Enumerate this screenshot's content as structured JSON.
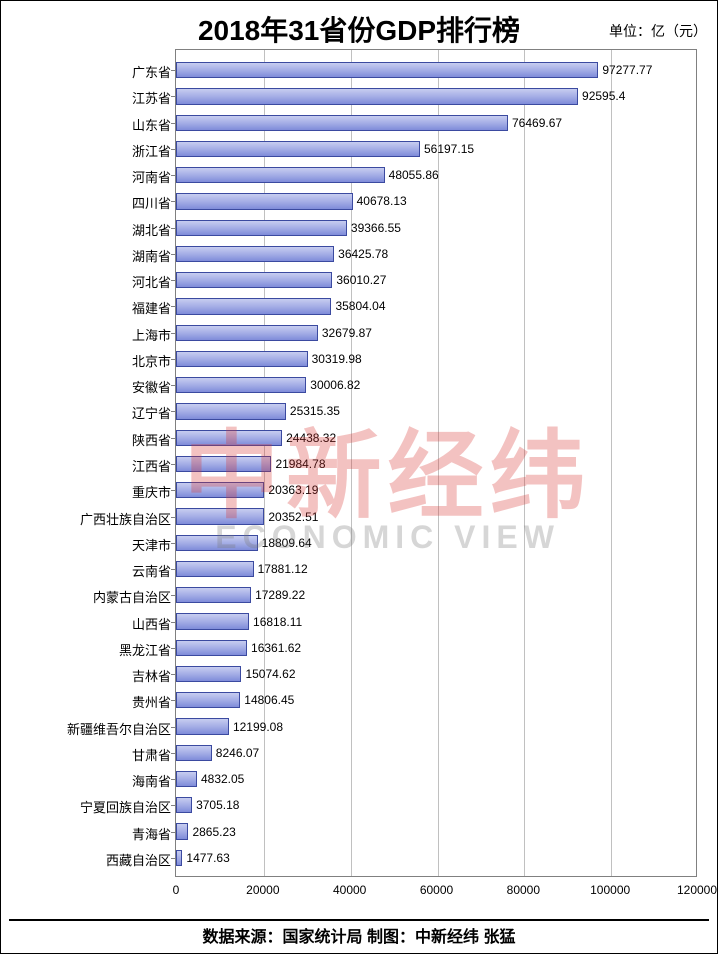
{
  "title": "2018年31省份GDP排行榜",
  "title_fontsize": 28,
  "title_color": "#000000",
  "unit_label": "单位：亿（元）",
  "unit_fontsize": 14,
  "footer": "数据来源：国家统计局  制图：中新经纬  张猛",
  "footer_fontsize": 16,
  "chart": {
    "type": "bar",
    "orientation": "horizontal",
    "xlim": [
      0,
      120000
    ],
    "xtick_step": 20000,
    "xticks": [
      0,
      20000,
      40000,
      60000,
      80000,
      100000,
      120000
    ],
    "background_color": "#ffffff",
    "grid_color": "#c0c0c0",
    "axis_color": "#808080",
    "bar_fill_top": "#c7cdf0",
    "bar_fill_mid": "#a5aee6",
    "bar_fill_bottom": "#7f8cd9",
    "bar_border": "#3b4aa0",
    "bar_height_ratio": 0.62,
    "label_fontsize": 13,
    "value_label_fontsize": 12,
    "tick_label_fontsize": 12,
    "categories": [
      "广东省",
      "江苏省",
      "山东省",
      "浙江省",
      "河南省",
      "四川省",
      "湖北省",
      "湖南省",
      "河北省",
      "福建省",
      "上海市",
      "北京市",
      "安徽省",
      "辽宁省",
      "陕西省",
      "江西省",
      "重庆市",
      "广西壮族自治区",
      "天津市",
      "云南省",
      "内蒙古自治区",
      "山西省",
      "黑龙江省",
      "吉林省",
      "贵州省",
      "新疆维吾尔自治区",
      "甘肃省",
      "海南省",
      "宁夏回族自治区",
      "青海省",
      "西藏自治区"
    ],
    "values": [
      97277.77,
      92595.4,
      76469.67,
      56197.15,
      48055.86,
      40678.13,
      39366.55,
      36425.78,
      36010.27,
      35804.04,
      32679.87,
      30319.98,
      30006.82,
      25315.35,
      24438.32,
      21984.78,
      20363.19,
      20352.51,
      18809.64,
      17881.12,
      17289.22,
      16818.11,
      16361.62,
      15074.62,
      14806.45,
      12199.08,
      8246.07,
      4832.05,
      3705.18,
      2865.23,
      1477.63
    ]
  },
  "watermark": {
    "cn_text": "中新经纬",
    "en_text": "ECONOMIC VIEW",
    "cn_color": "rgba(214,53,49,0.30)",
    "en_color": "rgba(120,120,120,0.30)",
    "cn_fontsize": 96,
    "en_fontsize": 32
  }
}
